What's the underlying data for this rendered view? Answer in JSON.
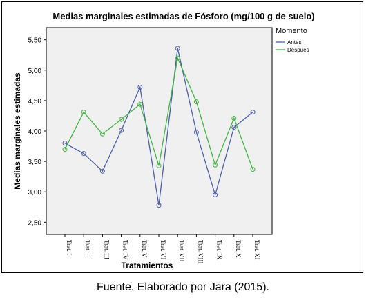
{
  "caption": "Fuente. Elaborado por Jara (2015).",
  "chart_data": {
    "type": "line",
    "title": "Medias marginales estimadas de Fósforo (mg/100 g de suelo)",
    "xlabel": "Tratamientos",
    "ylabel": "Medias marginales estimadas",
    "categories": [
      "Trat. I",
      "Trat. II",
      "Trat. III",
      "Trat. IV",
      "Trat. V",
      "Trat. VI",
      "Trat. VII",
      "Trat. VIII",
      "Trat. IX",
      "Trat. X",
      "Trat. XI"
    ],
    "ylim": [
      2.3,
      5.7
    ],
    "yticks": [
      2.5,
      3.0,
      3.5,
      4.0,
      4.5,
      5.0,
      5.5
    ],
    "ytick_labels": [
      "2,50",
      "3,00",
      "3,50",
      "4,00",
      "4,50",
      "5,00",
      "5,50"
    ],
    "legend_title": "Momento",
    "legend_position": "right",
    "grid": false,
    "plot_background": "#f0f0f0",
    "series": [
      {
        "name": "Antes",
        "color": "#4a5fa8",
        "values": [
          3.8,
          3.63,
          3.34,
          4.01,
          4.72,
          2.78,
          5.36,
          3.98,
          2.95,
          4.06,
          4.31
        ]
      },
      {
        "name": "Después",
        "color": "#44b444",
        "values": [
          3.7,
          4.31,
          3.95,
          4.19,
          4.44,
          3.43,
          5.2,
          4.48,
          3.44,
          4.21,
          3.37
        ]
      }
    ]
  }
}
